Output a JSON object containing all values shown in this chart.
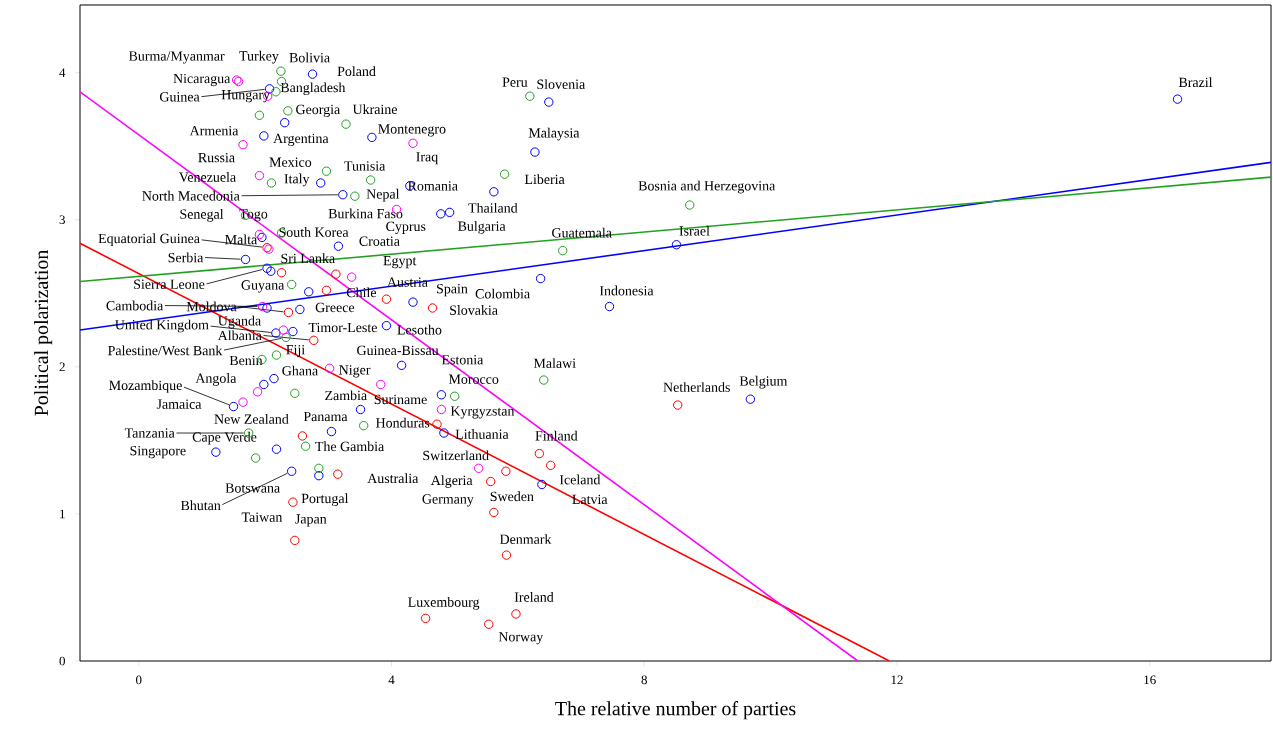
{
  "chart_data": {
    "type": "scatter",
    "xlabel": "The relative number of parties",
    "ylabel": "Political polarization",
    "xlim": [
      -0.93,
      17.92
    ],
    "ylim": [
      0,
      4.46
    ],
    "xticks": [
      0,
      4,
      8,
      12,
      16
    ],
    "yticks": [
      0,
      1,
      2,
      3,
      4
    ],
    "series": [
      {
        "marker": "circle",
        "color": "#ff0000",
        "x": [
          2.03,
          2.26,
          3.12,
          2.97,
          3.92,
          4.65,
          2.37,
          2.77,
          4.72,
          2.59,
          3.15,
          2.44,
          2.47,
          8.53,
          6.34,
          6.52,
          5.81,
          5.57,
          5.62,
          5.82,
          4.54,
          5.54,
          5.97
        ],
        "values": [
          2.81,
          2.64,
          2.63,
          2.52,
          2.46,
          2.4,
          2.37,
          2.18,
          1.61,
          1.53,
          1.27,
          1.08,
          0.82,
          1.74,
          1.41,
          1.33,
          1.29,
          1.22,
          1.01,
          0.72,
          0.29,
          0.25,
          0.32
        ]
      },
      {
        "marker": "circle",
        "color": "#0000ff",
        "x": [
          2.75,
          2.07,
          2.31,
          1.98,
          3.69,
          2.88,
          4.29,
          3.23,
          4.78,
          4.92,
          5.62,
          6.27,
          6.49,
          1.95,
          3.16,
          1.69,
          2.03,
          2.09,
          2.69,
          4.34,
          2.03,
          2.55,
          3.92,
          2.17,
          2.44,
          4.16,
          1.98,
          2.14,
          3.51,
          4.79,
          1.5,
          4.83,
          3.05,
          2.18,
          1.22,
          2.42,
          2.85,
          6.38,
          6.36,
          7.45,
          8.51,
          9.68,
          16.44
        ],
        "values": [
          3.99,
          3.89,
          3.66,
          3.57,
          3.56,
          3.25,
          3.23,
          3.17,
          3.04,
          3.05,
          3.19,
          3.46,
          3.8,
          2.88,
          2.82,
          2.73,
          2.67,
          2.65,
          2.51,
          2.44,
          2.4,
          2.39,
          2.28,
          2.23,
          2.24,
          2.01,
          1.88,
          1.92,
          1.71,
          1.81,
          1.73,
          1.55,
          1.56,
          1.44,
          1.42,
          1.29,
          1.26,
          1.2,
          2.6,
          2.41,
          2.83,
          1.78,
          3.82
        ]
      },
      {
        "marker": "circle",
        "color": "#22a022",
        "x": [
          2.25,
          2.26,
          2.17,
          1.91,
          2.36,
          3.28,
          2.97,
          3.67,
          2.1,
          3.42,
          1.69,
          2.26,
          2.42,
          2.33,
          1.95,
          2.18,
          2.47,
          5.0,
          3.56,
          2.64,
          1.74,
          1.85,
          2.85,
          6.19,
          5.79,
          8.72,
          6.71,
          6.41
        ],
        "values": [
          4.01,
          3.94,
          3.87,
          3.71,
          3.74,
          3.65,
          3.33,
          3.27,
          3.25,
          3.16,
          3.03,
          2.91,
          2.56,
          2.2,
          2.05,
          2.08,
          1.82,
          1.8,
          1.6,
          1.46,
          1.55,
          1.38,
          1.31,
          3.84,
          3.31,
          3.1,
          2.79,
          1.91
        ]
      },
      {
        "marker": "circle",
        "color": "#ff00ff",
        "x": [
          1.55,
          1.58,
          2.04,
          1.65,
          4.34,
          1.91,
          4.08,
          1.91,
          2.06,
          3.37,
          1.96,
          2.29,
          3.02,
          1.88,
          3.83,
          1.65,
          4.79,
          5.38
        ],
        "values": [
          3.95,
          3.94,
          3.84,
          3.51,
          3.52,
          3.3,
          3.07,
          2.9,
          2.8,
          2.61,
          2.41,
          2.25,
          1.99,
          1.83,
          1.88,
          1.76,
          1.71,
          1.31
        ]
      },
      {
        "type": "line",
        "color": "#ff0000",
        "x": [
          -0.93,
          11.88
        ],
        "values": [
          2.84,
          0
        ]
      },
      {
        "type": "line",
        "color": "#ff00ff",
        "x": [
          -0.93,
          11.38
        ],
        "values": [
          3.87,
          0
        ]
      },
      {
        "type": "line",
        "color": "#0000ff",
        "x": [
          -0.93,
          17.92
        ],
        "values": [
          2.25,
          3.39
        ]
      },
      {
        "type": "line",
        "color": "#22a022",
        "x": [
          -0.93,
          17.92
        ],
        "values": [
          2.58,
          3.29
        ]
      }
    ],
    "annotations": [
      {
        "text": "Burma/Myanmar",
        "x": 1.58,
        "y": 3.94
      },
      {
        "text": "Turkey",
        "x": 2.25,
        "y": 4.01
      },
      {
        "text": "Bolivia",
        "x": 2.26,
        "y": 3.94
      },
      {
        "text": "Poland",
        "x": 2.75,
        "y": 3.99
      },
      {
        "text": "Nicaragua",
        "x": 1.55,
        "y": 3.95
      },
      {
        "text": "Bangladesh",
        "x": 2.17,
        "y": 3.87
      },
      {
        "text": "Guinea",
        "x": 2.07,
        "y": 3.89
      },
      {
        "text": "Hungary",
        "x": 2.04,
        "y": 3.84
      },
      {
        "text": "Georgia",
        "x": 2.36,
        "y": 3.74
      },
      {
        "text": "Ukraine",
        "x": 3.28,
        "y": 3.65
      },
      {
        "text": "Armenia",
        "x": 1.65,
        "y": 3.51
      },
      {
        "text": "Argentina",
        "x": 1.98,
        "y": 3.57
      },
      {
        "text": "Montenegro",
        "x": 3.69,
        "y": 3.56
      },
      {
        "text": "Russia",
        "x": 1.91,
        "y": 3.3
      },
      {
        "text": "Iraq",
        "x": 4.34,
        "y": 3.52
      },
      {
        "text": "Mexico",
        "x": 2.97,
        "y": 3.33
      },
      {
        "text": "Tunisia",
        "x": 3.67,
        "y": 3.27
      },
      {
        "text": "Venezuela",
        "x": 2.1,
        "y": 3.25
      },
      {
        "text": "Italy",
        "x": 2.88,
        "y": 3.25
      },
      {
        "text": "Romania",
        "x": 4.29,
        "y": 3.23
      },
      {
        "text": "North Macedonia",
        "x": 3.23,
        "y": 3.17
      },
      {
        "text": "Nepal",
        "x": 3.42,
        "y": 3.16
      },
      {
        "text": "Liberia",
        "x": 5.79,
        "y": 3.31
      },
      {
        "text": "Thailand",
        "x": 5.62,
        "y": 3.19
      },
      {
        "text": "Burkina Faso",
        "x": 4.08,
        "y": 3.07
      },
      {
        "text": "Senegal",
        "x": 1.69,
        "y": 3.03
      },
      {
        "text": "Togo",
        "x": 1.69,
        "y": 3.03
      },
      {
        "text": "Cyprus",
        "x": 4.78,
        "y": 3.04
      },
      {
        "text": "Bulgaria",
        "x": 4.92,
        "y": 3.05
      },
      {
        "text": "South Korea",
        "x": 2.26,
        "y": 2.91
      },
      {
        "text": "Equatorial Guinea",
        "x": 2.03,
        "y": 2.81
      },
      {
        "text": "Malta",
        "x": 1.95,
        "y": 2.88
      },
      {
        "text": "Croatia",
        "x": 3.16,
        "y": 2.82
      },
      {
        "text": "Guatemala",
        "x": 6.71,
        "y": 2.79
      },
      {
        "text": "Israel",
        "x": 8.51,
        "y": 2.83
      },
      {
        "text": "Serbia",
        "x": 1.69,
        "y": 2.73
      },
      {
        "text": "Sri Lanka",
        "x": 2.09,
        "y": 2.65
      },
      {
        "text": "Egypt",
        "x": 3.37,
        "y": 2.61
      },
      {
        "text": "Sierra Leone",
        "x": 2.03,
        "y": 2.67
      },
      {
        "text": "Guyana",
        "x": 2.42,
        "y": 2.56
      },
      {
        "text": "Chile",
        "x": 2.97,
        "y": 2.52
      },
      {
        "text": "Austria",
        "x": 3.92,
        "y": 2.46
      },
      {
        "text": "Spain",
        "x": 4.34,
        "y": 2.44
      },
      {
        "text": "Colombia",
        "x": 6.36,
        "y": 2.6
      },
      {
        "text": "Indonesia",
        "x": 7.45,
        "y": 2.41
      },
      {
        "text": "Slovakia",
        "x": 4.65,
        "y": 2.4
      },
      {
        "text": "Cambodia",
        "x": 1.96,
        "y": 2.41
      },
      {
        "text": "Moldova",
        "x": 2.37,
        "y": 2.37
      },
      {
        "text": "Greece",
        "x": 2.55,
        "y": 2.39
      },
      {
        "text": "United Kingdom",
        "x": 2.17,
        "y": 2.23
      },
      {
        "text": "Uganda",
        "x": 2.29,
        "y": 2.25
      },
      {
        "text": "Timor-Leste",
        "x": 2.44,
        "y": 2.24
      },
      {
        "text": "Lesotho",
        "x": 3.92,
        "y": 2.28
      },
      {
        "text": "Palestine/West Bank",
        "x": 2.33,
        "y": 2.2
      },
      {
        "text": "Albania",
        "x": 2.77,
        "y": 2.18
      },
      {
        "text": "Fiji",
        "x": 2.18,
        "y": 2.08
      },
      {
        "text": "Guinea-Bissau",
        "x": 4.16,
        "y": 2.01
      },
      {
        "text": "Estonia",
        "x": 4.79,
        "y": 1.81
      },
      {
        "text": "Malawi",
        "x": 6.41,
        "y": 1.91
      },
      {
        "text": "Benin",
        "x": 1.95,
        "y": 2.05
      },
      {
        "text": "Niger",
        "x": 3.02,
        "y": 1.99
      },
      {
        "text": "Ghana",
        "x": 2.14,
        "y": 1.92
      },
      {
        "text": "Morocco",
        "x": 5.0,
        "y": 1.8
      },
      {
        "text": "Mozambique",
        "x": 1.5,
        "y": 1.73
      },
      {
        "text": "Angola",
        "x": 1.98,
        "y": 1.88
      },
      {
        "text": "Netherlands",
        "x": 8.53,
        "y": 1.74
      },
      {
        "text": "Belgium",
        "x": 9.68,
        "y": 1.78
      },
      {
        "text": "Zambia",
        "x": 2.47,
        "y": 1.82
      },
      {
        "text": "Suriname",
        "x": 3.51,
        "y": 1.71
      },
      {
        "text": "Kyrgyzstan",
        "x": 4.79,
        "y": 1.71
      },
      {
        "text": "Jamaica",
        "x": 1.65,
        "y": 1.76
      },
      {
        "text": "New Zealand",
        "x": 2.59,
        "y": 1.53
      },
      {
        "text": "Panama",
        "x": 3.05,
        "y": 1.56
      },
      {
        "text": "Honduras",
        "x": 3.56,
        "y": 1.6
      },
      {
        "text": "Lithuania",
        "x": 4.83,
        "y": 1.55
      },
      {
        "text": "Finland",
        "x": 6.34,
        "y": 1.41
      },
      {
        "text": "Tanzania",
        "x": 1.74,
        "y": 1.55
      },
      {
        "text": "Cape Verde",
        "x": 2.18,
        "y": 1.44
      },
      {
        "text": "The Gambia",
        "x": 2.64,
        "y": 1.46
      },
      {
        "text": "Switzerland",
        "x": 5.38,
        "y": 1.31
      },
      {
        "text": "Singapore",
        "x": 1.22,
        "y": 1.42
      },
      {
        "text": "Iceland",
        "x": 6.38,
        "y": 1.2
      },
      {
        "text": "Australia",
        "x": 3.15,
        "y": 1.27
      },
      {
        "text": "Algeria",
        "x": 5.57,
        "y": 1.22
      },
      {
        "text": "Botswana",
        "x": 1.85,
        "y": 1.38
      },
      {
        "text": "Portugal",
        "x": 2.85,
        "y": 1.26
      },
      {
        "text": "Germany",
        "x": 5.62,
        "y": 1.01
      },
      {
        "text": "Sweden",
        "x": 5.81,
        "y": 1.29
      },
      {
        "text": "Latvia",
        "x": 6.52,
        "y": 1.33
      },
      {
        "text": "Bhutan",
        "x": 2.42,
        "y": 1.29
      },
      {
        "text": "Taiwan",
        "x": 2.44,
        "y": 1.08
      },
      {
        "text": "Japan",
        "x": 2.47,
        "y": 0.82
      },
      {
        "text": "Denmark",
        "x": 5.82,
        "y": 0.72
      },
      {
        "text": "Luxembourg",
        "x": 4.54,
        "y": 0.29
      },
      {
        "text": "Ireland",
        "x": 5.97,
        "y": 0.32
      },
      {
        "text": "Norway",
        "x": 5.54,
        "y": 0.25
      },
      {
        "text": "Peru",
        "x": 6.19,
        "y": 3.84
      },
      {
        "text": "Slovenia",
        "x": 6.49,
        "y": 3.8
      },
      {
        "text": "Malaysia",
        "x": 6.27,
        "y": 3.46
      },
      {
        "text": "Bosnia and Herzegovina",
        "x": 8.72,
        "y": 3.1
      },
      {
        "text": "Brazil",
        "x": 16.44,
        "y": 3.82
      }
    ]
  }
}
